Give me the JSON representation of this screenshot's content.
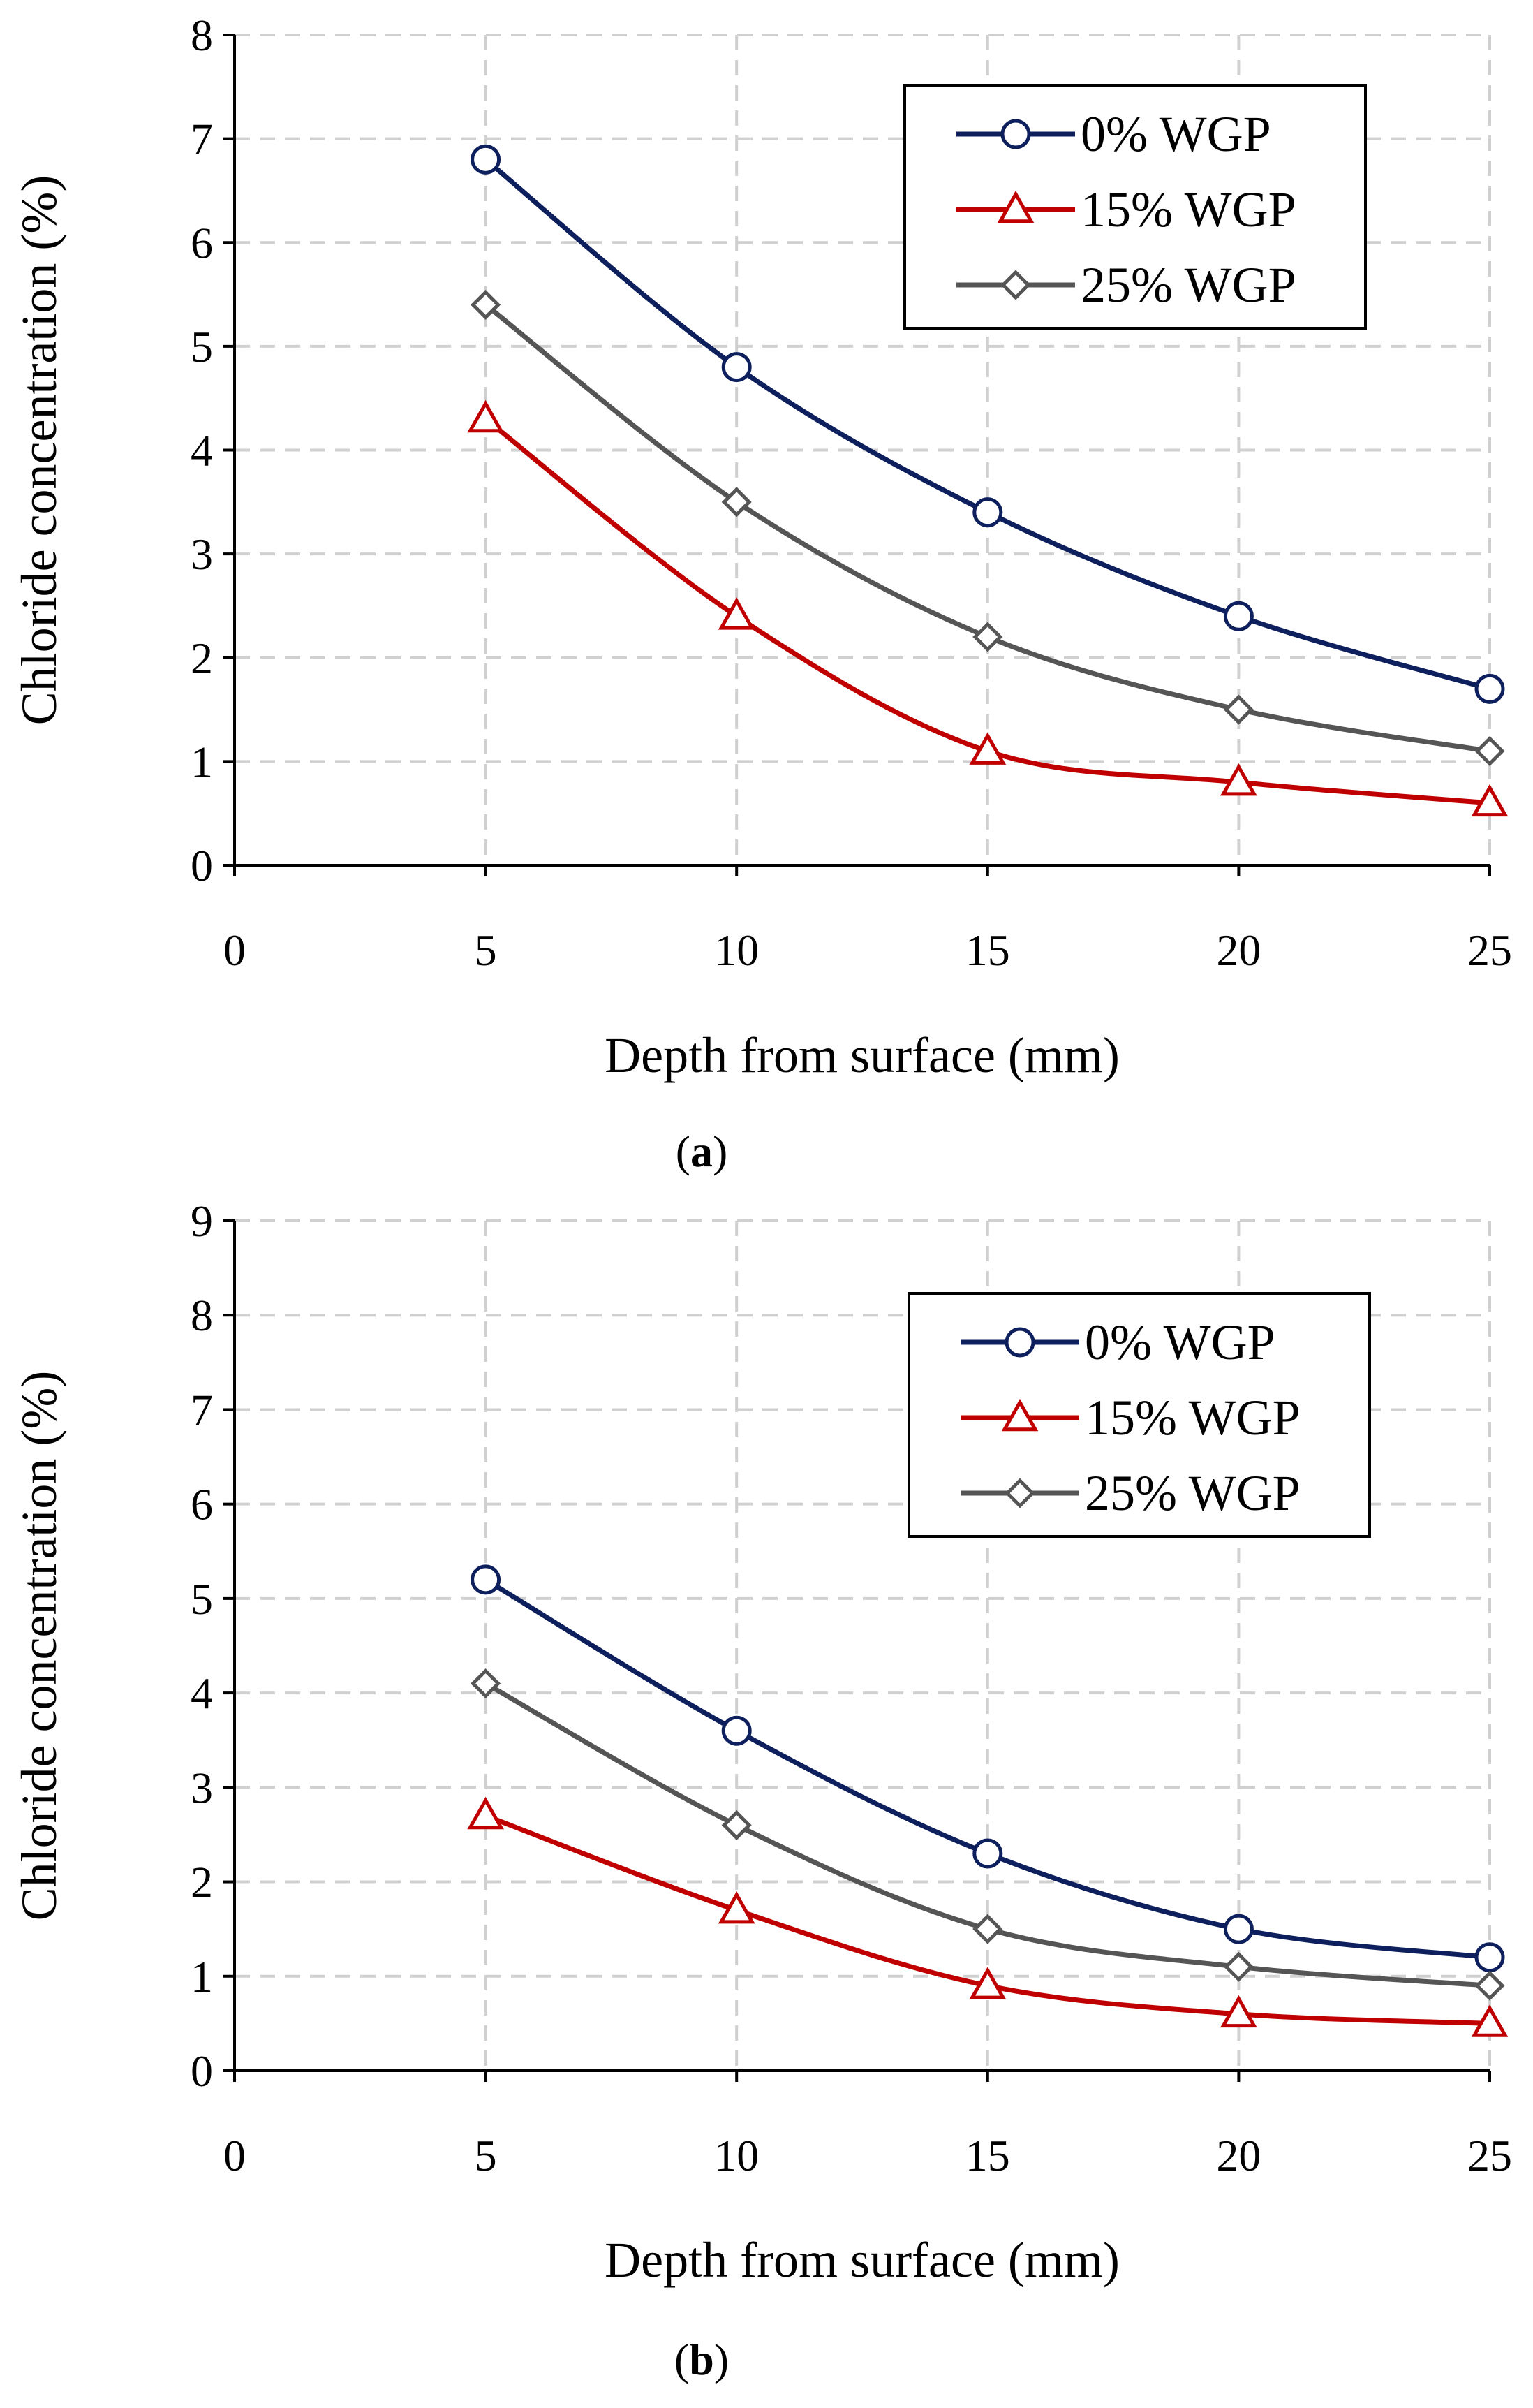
{
  "chart_data": [
    {
      "type": "line",
      "caption_prefix": "(",
      "caption_letter": "a",
      "caption_suffix": ")",
      "xlabel": "Depth from surface (mm)",
      "ylabel": "Chloride concentration (%)",
      "xlim": [
        0,
        25
      ],
      "ylim": [
        0,
        8
      ],
      "xticks": [
        0,
        5,
        10,
        15,
        20,
        25
      ],
      "yticks": [
        0,
        1,
        2,
        3,
        4,
        5,
        6,
        7,
        8
      ],
      "grid": true,
      "legend_position": "top-right",
      "series": [
        {
          "name": "0% WGP",
          "marker": "circle",
          "color": "#0d1f5c",
          "x": [
            5,
            10,
            15,
            20,
            25
          ],
          "values": [
            6.8,
            4.8,
            3.4,
            2.4,
            1.7
          ]
        },
        {
          "name": "15% WGP",
          "marker": "triangle",
          "color": "#c00000",
          "x": [
            5,
            10,
            15,
            20,
            25
          ],
          "values": [
            4.3,
            2.4,
            1.1,
            0.8,
            0.6
          ]
        },
        {
          "name": "25% WGP",
          "marker": "diamond",
          "color": "#555555",
          "x": [
            5,
            10,
            15,
            20,
            25
          ],
          "values": [
            5.4,
            3.5,
            2.2,
            1.5,
            1.1
          ]
        }
      ]
    },
    {
      "type": "line",
      "caption_prefix": "(",
      "caption_letter": "b",
      "caption_suffix": ")",
      "xlabel": "Depth from surface (mm)",
      "ylabel": "Chloride concentration (%)",
      "xlim": [
        0,
        25
      ],
      "ylim": [
        0,
        9
      ],
      "xticks": [
        0,
        5,
        10,
        15,
        20,
        25
      ],
      "yticks": [
        0,
        1,
        2,
        3,
        4,
        5,
        6,
        7,
        8,
        9
      ],
      "grid": true,
      "legend_position": "top-right",
      "series": [
        {
          "name": "0% WGP",
          "marker": "circle",
          "color": "#0d1f5c",
          "x": [
            5,
            10,
            15,
            20,
            25
          ],
          "values": [
            5.2,
            3.6,
            2.3,
            1.5,
            1.2
          ]
        },
        {
          "name": "15% WGP",
          "marker": "triangle",
          "color": "#c00000",
          "x": [
            5,
            10,
            15,
            20,
            25
          ],
          "values": [
            2.7,
            1.7,
            0.9,
            0.6,
            0.5
          ]
        },
        {
          "name": "25% WGP",
          "marker": "diamond",
          "color": "#555555",
          "x": [
            5,
            10,
            15,
            20,
            25
          ],
          "values": [
            4.1,
            2.6,
            1.5,
            1.1,
            0.9
          ]
        }
      ]
    }
  ]
}
